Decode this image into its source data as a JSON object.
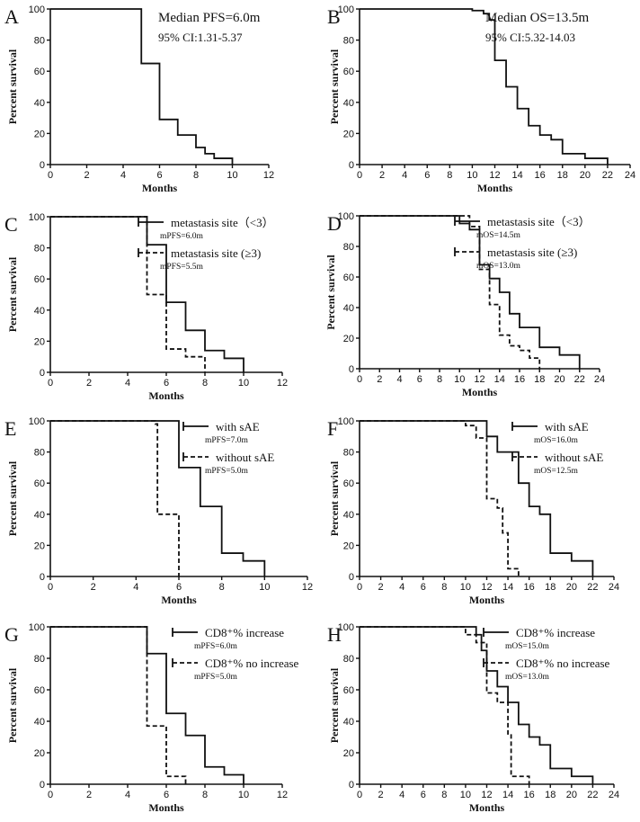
{
  "chart_data": [
    {
      "type": "line",
      "panel": "A",
      "ylabel": "Percent survival",
      "xlabel": "Months",
      "xlim": [
        0,
        12
      ],
      "xticks": [
        0,
        2,
        4,
        6,
        8,
        10,
        12
      ],
      "ylim": [
        0,
        100
      ],
      "yticks": [
        0,
        20,
        40,
        60,
        80,
        100
      ],
      "annotations": [
        "Median PFS=6.0m",
        "95% CI:1.31-5.37"
      ],
      "series": [
        {
          "name": "",
          "style": "solid",
          "steps": [
            [
              0,
              100
            ],
            [
              5,
              65
            ],
            [
              6,
              29
            ],
            [
              7,
              19
            ],
            [
              8,
              11
            ],
            [
              8.5,
              7
            ],
            [
              9,
              4
            ],
            [
              10,
              0
            ]
          ]
        }
      ]
    },
    {
      "type": "line",
      "panel": "B",
      "ylabel": "Percent survival",
      "xlabel": "Months",
      "xlim": [
        0,
        24
      ],
      "xticks": [
        0,
        2,
        4,
        6,
        8,
        10,
        12,
        14,
        16,
        18,
        20,
        22,
        24
      ],
      "ylim": [
        0,
        100
      ],
      "yticks": [
        0,
        20,
        40,
        60,
        80,
        100
      ],
      "annotations": [
        "Median OS=13.5m",
        "95% CI:5.32-14.03"
      ],
      "series": [
        {
          "name": "",
          "style": "solid",
          "steps": [
            [
              0,
              100
            ],
            [
              10,
              99
            ],
            [
              11,
              97
            ],
            [
              11.5,
              93
            ],
            [
              12,
              67
            ],
            [
              13,
              50
            ],
            [
              14,
              36
            ],
            [
              15,
              25
            ],
            [
              16,
              19
            ],
            [
              17,
              16
            ],
            [
              18,
              7
            ],
            [
              20,
              4
            ],
            [
              22,
              0
            ]
          ]
        }
      ]
    },
    {
      "type": "line",
      "panel": "C",
      "ylabel": "Percent survival",
      "xlabel": "Months",
      "xlim": [
        0,
        12
      ],
      "xticks": [
        0,
        2,
        4,
        6,
        8,
        10,
        12
      ],
      "ylim": [
        0,
        100
      ],
      "yticks": [
        0,
        20,
        40,
        60,
        80,
        100
      ],
      "series": [
        {
          "name": "metastasis site（<3）",
          "stat": "mPFS=6.0m",
          "style": "solid",
          "steps": [
            [
              0,
              100
            ],
            [
              5,
              82
            ],
            [
              6,
              45
            ],
            [
              7,
              27
            ],
            [
              8,
              14
            ],
            [
              9,
              9
            ],
            [
              10,
              0
            ]
          ]
        },
        {
          "name": "metastasis site (≥3)",
          "stat": "mPFS=5.5m",
          "style": "dashed",
          "steps": [
            [
              0,
              100
            ],
            [
              5,
              50
            ],
            [
              6,
              15
            ],
            [
              7,
              10
            ],
            [
              8,
              0
            ]
          ]
        }
      ]
    },
    {
      "type": "line",
      "panel": "D",
      "ylabel": "Percent survival",
      "xlabel": "Months",
      "xlim": [
        0,
        24
      ],
      "xticks": [
        0,
        2,
        4,
        6,
        8,
        10,
        12,
        14,
        16,
        18,
        20,
        22,
        24
      ],
      "ylim": [
        0,
        100
      ],
      "yticks": [
        0,
        20,
        40,
        60,
        80,
        100
      ],
      "series": [
        {
          "name": "metastasis site（<3）",
          "stat": "mOS=14.5m",
          "style": "solid",
          "steps": [
            [
              0,
              100
            ],
            [
              10,
              95
            ],
            [
              11,
              91
            ],
            [
              12,
              68
            ],
            [
              13,
              59
            ],
            [
              14,
              50
            ],
            [
              15,
              36
            ],
            [
              16,
              27
            ],
            [
              18,
              14
            ],
            [
              20,
              9
            ],
            [
              22,
              0
            ]
          ]
        },
        {
          "name": "metastasis site (≥3)",
          "stat": "mOS=13.0m",
          "style": "dashed",
          "steps": [
            [
              0,
              100
            ],
            [
              11,
              93
            ],
            [
              12,
              65
            ],
            [
              13,
              42
            ],
            [
              14,
              22
            ],
            [
              15,
              15
            ],
            [
              16,
              12
            ],
            [
              17,
              7
            ],
            [
              18,
              0
            ]
          ]
        }
      ]
    },
    {
      "type": "line",
      "panel": "E",
      "ylabel": "Percent survival",
      "xlabel": "Months",
      "xlim": [
        0,
        12
      ],
      "xticks": [
        0,
        2,
        4,
        6,
        8,
        10,
        12
      ],
      "ylim": [
        0,
        100
      ],
      "yticks": [
        0,
        20,
        40,
        60,
        80,
        100
      ],
      "series": [
        {
          "name": "with sAE",
          "stat": "mPFS=7.0m",
          "style": "solid",
          "steps": [
            [
              0,
              100
            ],
            [
              6,
              70
            ],
            [
              7,
              45
            ],
            [
              8,
              15
            ],
            [
              9,
              10
            ],
            [
              10,
              0
            ]
          ]
        },
        {
          "name": "without sAE",
          "stat": "mPFS=5.0m",
          "style": "dashed",
          "steps": [
            [
              0,
              100
            ],
            [
              4.9,
              98
            ],
            [
              5,
              40
            ],
            [
              6,
              0
            ]
          ]
        }
      ]
    },
    {
      "type": "line",
      "panel": "F",
      "ylabel": "Percent survival",
      "xlabel": "Months",
      "xlim": [
        0,
        24
      ],
      "xticks": [
        0,
        2,
        4,
        6,
        8,
        10,
        12,
        14,
        16,
        18,
        20,
        22,
        24
      ],
      "ylim": [
        0,
        100
      ],
      "yticks": [
        0,
        20,
        40,
        60,
        80,
        100
      ],
      "series": [
        {
          "name": "with sAE",
          "stat": "mOS=16.0m",
          "style": "solid",
          "steps": [
            [
              0,
              100
            ],
            [
              12,
              90
            ],
            [
              13,
              80
            ],
            [
              15,
              60
            ],
            [
              16,
              45
            ],
            [
              17,
              40
            ],
            [
              18,
              15
            ],
            [
              20,
              10
            ],
            [
              22,
              0
            ]
          ]
        },
        {
          "name": "without sAE",
          "stat": "mOS=12.5m",
          "style": "dashed",
          "steps": [
            [
              0,
              100
            ],
            [
              10,
              97
            ],
            [
              11,
              89
            ],
            [
              12,
              50
            ],
            [
              13,
              44
            ],
            [
              13.5,
              28
            ],
            [
              14,
              5
            ],
            [
              15,
              0
            ]
          ]
        }
      ]
    },
    {
      "type": "line",
      "panel": "G",
      "ylabel": "Percent survival",
      "xlabel": "Months",
      "xlim": [
        0,
        12
      ],
      "xticks": [
        0,
        2,
        4,
        6,
        8,
        10,
        12
      ],
      "ylim": [
        0,
        100
      ],
      "yticks": [
        0,
        20,
        40,
        60,
        80,
        100
      ],
      "series": [
        {
          "name": "CD8⁺% increase",
          "stat": "mPFS=6.0m",
          "style": "solid",
          "steps": [
            [
              0,
              100
            ],
            [
              5,
              83
            ],
            [
              6,
              45
            ],
            [
              7,
              31
            ],
            [
              8,
              11
            ],
            [
              9,
              6
            ],
            [
              10,
              0
            ]
          ]
        },
        {
          "name": "CD8⁺% no increase",
          "stat": "mPFS=5.0m",
          "style": "dashed",
          "steps": [
            [
              0,
              100
            ],
            [
              5,
              37
            ],
            [
              6,
              5
            ],
            [
              7,
              0
            ]
          ]
        }
      ]
    },
    {
      "type": "line",
      "panel": "H",
      "ylabel": "Percent survival",
      "xlabel": "Months",
      "xlim": [
        0,
        24
      ],
      "xticks": [
        0,
        2,
        4,
        6,
        8,
        10,
        12,
        14,
        16,
        18,
        20,
        22,
        24
      ],
      "ylim": [
        0,
        100
      ],
      "yticks": [
        0,
        20,
        40,
        60,
        80,
        100
      ],
      "series": [
        {
          "name": "CD8⁺% increase",
          "stat": "mOS=15.0m",
          "style": "solid",
          "steps": [
            [
              0,
              100
            ],
            [
              11,
              95
            ],
            [
              11.5,
              85
            ],
            [
              12,
              72
            ],
            [
              13,
              62
            ],
            [
              14,
              52
            ],
            [
              15,
              38
            ],
            [
              16,
              30
            ],
            [
              17,
              25
            ],
            [
              18,
              10
            ],
            [
              20,
              5
            ],
            [
              22,
              0
            ]
          ]
        },
        {
          "name": "CD8⁺% no increase",
          "stat": "mOS=13.0m",
          "style": "dashed",
          "steps": [
            [
              0,
              100
            ],
            [
              10,
              95
            ],
            [
              11,
              90
            ],
            [
              12,
              58
            ],
            [
              13,
              52
            ],
            [
              14,
              32
            ],
            [
              14.3,
              5
            ],
            [
              16,
              0
            ]
          ]
        }
      ]
    }
  ]
}
